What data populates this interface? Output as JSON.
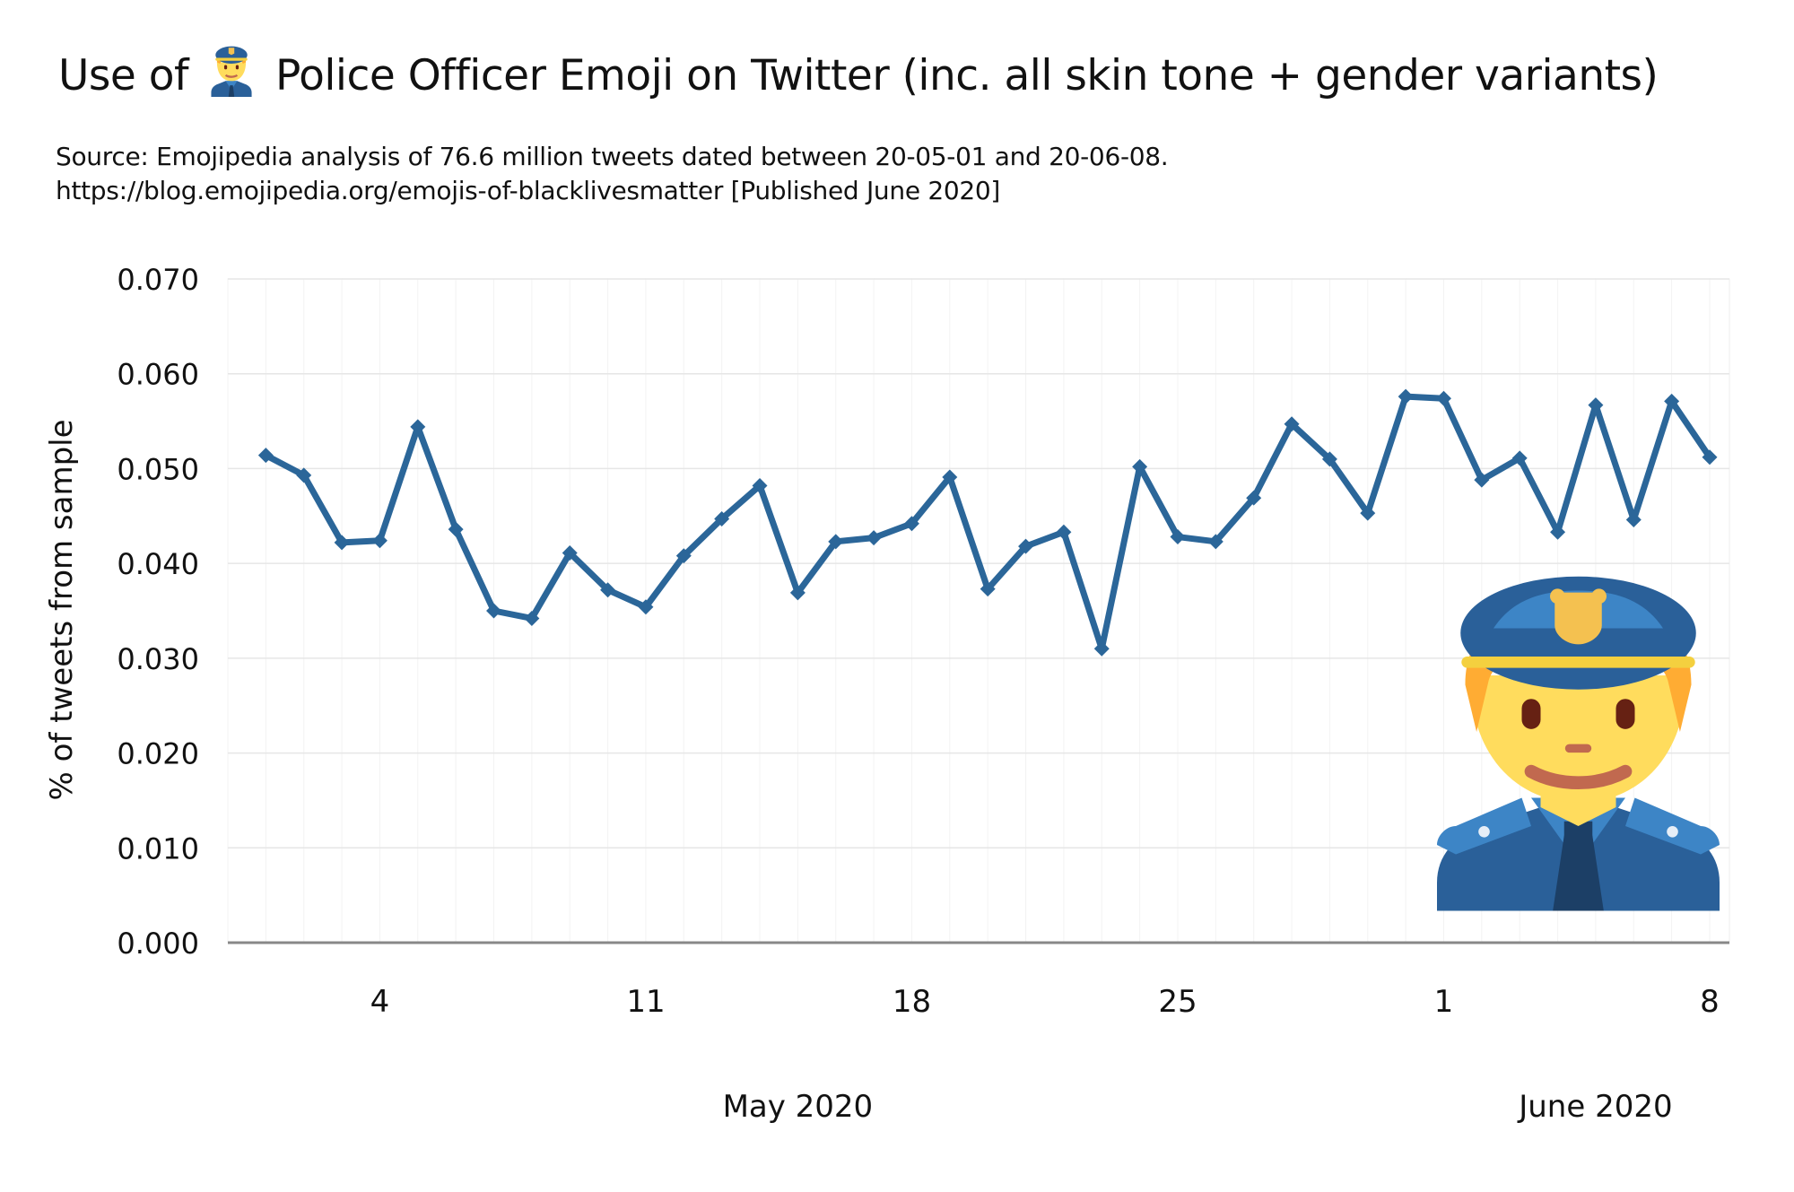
{
  "title": {
    "prefix": "Use of",
    "emoji_icon": "police-officer-emoji",
    "suffix": "Police Officer Emoji on Twitter (inc. all skin tone + gender variants)"
  },
  "subtitle": {
    "line1": "Source: Emojipedia analysis of 76.6 million tweets dated between 20-05-01 and 20-06-08.",
    "line2": "https://blog.emojipedia.org/emojis-of-blacklivesmatter [Published June 2020]"
  },
  "colors": {
    "line": "#2b6699",
    "grid": "#e6e6e6",
    "axis": "#888888"
  },
  "chart_data": {
    "type": "line",
    "ylabel": "% of tweets from sample",
    "ylim": [
      0,
      0.07
    ],
    "yticks": [
      "0.000",
      "0.010",
      "0.020",
      "0.030",
      "0.040",
      "0.050",
      "0.060",
      "0.070"
    ],
    "xlim": [
      "2020-04-30",
      "2020-06-08"
    ],
    "xticks": [
      {
        "date": "2020-05-04",
        "label": "4"
      },
      {
        "date": "2020-05-11",
        "label": "11"
      },
      {
        "date": "2020-05-18",
        "label": "18"
      },
      {
        "date": "2020-05-25",
        "label": "25"
      },
      {
        "date": "2020-06-01",
        "label": "1"
      },
      {
        "date": "2020-06-08",
        "label": "8"
      }
    ],
    "month_labels": [
      {
        "date": "2020-05-15",
        "label": "May 2020"
      },
      {
        "date": "2020-06-05",
        "label": "June 2020"
      }
    ],
    "grid": true,
    "decoration_icon": "police-officer-emoji",
    "series": [
      {
        "x": [
          "2020-05-01",
          "2020-05-02",
          "2020-05-03",
          "2020-05-04",
          "2020-05-05",
          "2020-05-06",
          "2020-05-07",
          "2020-05-08",
          "2020-05-09",
          "2020-05-10",
          "2020-05-11",
          "2020-05-12",
          "2020-05-13",
          "2020-05-14",
          "2020-05-15",
          "2020-05-16",
          "2020-05-17",
          "2020-05-18",
          "2020-05-19",
          "2020-05-20",
          "2020-05-21",
          "2020-05-22",
          "2020-05-23",
          "2020-05-24",
          "2020-05-25",
          "2020-05-26",
          "2020-05-27",
          "2020-05-28",
          "2020-05-29",
          "2020-05-30",
          "2020-05-31",
          "2020-06-01",
          "2020-06-02",
          "2020-06-03",
          "2020-06-04",
          "2020-06-05",
          "2020-06-06",
          "2020-06-07",
          "2020-06-08"
        ],
        "values": [
          0.0514,
          0.0493,
          0.0422,
          0.0424,
          0.0544,
          0.0436,
          0.035,
          0.0342,
          0.0411,
          0.0372,
          0.0354,
          0.0408,
          0.0447,
          0.0482,
          0.0369,
          0.0423,
          0.0427,
          0.0442,
          0.0491,
          0.0373,
          0.0418,
          0.0433,
          0.031,
          0.0502,
          0.0428,
          0.0423,
          0.0469,
          0.0547,
          0.051,
          0.0453,
          0.0576,
          0.0574,
          0.0488,
          0.0511,
          0.0433,
          0.0567,
          0.0446,
          0.0571,
          0.0512
        ]
      }
    ]
  }
}
